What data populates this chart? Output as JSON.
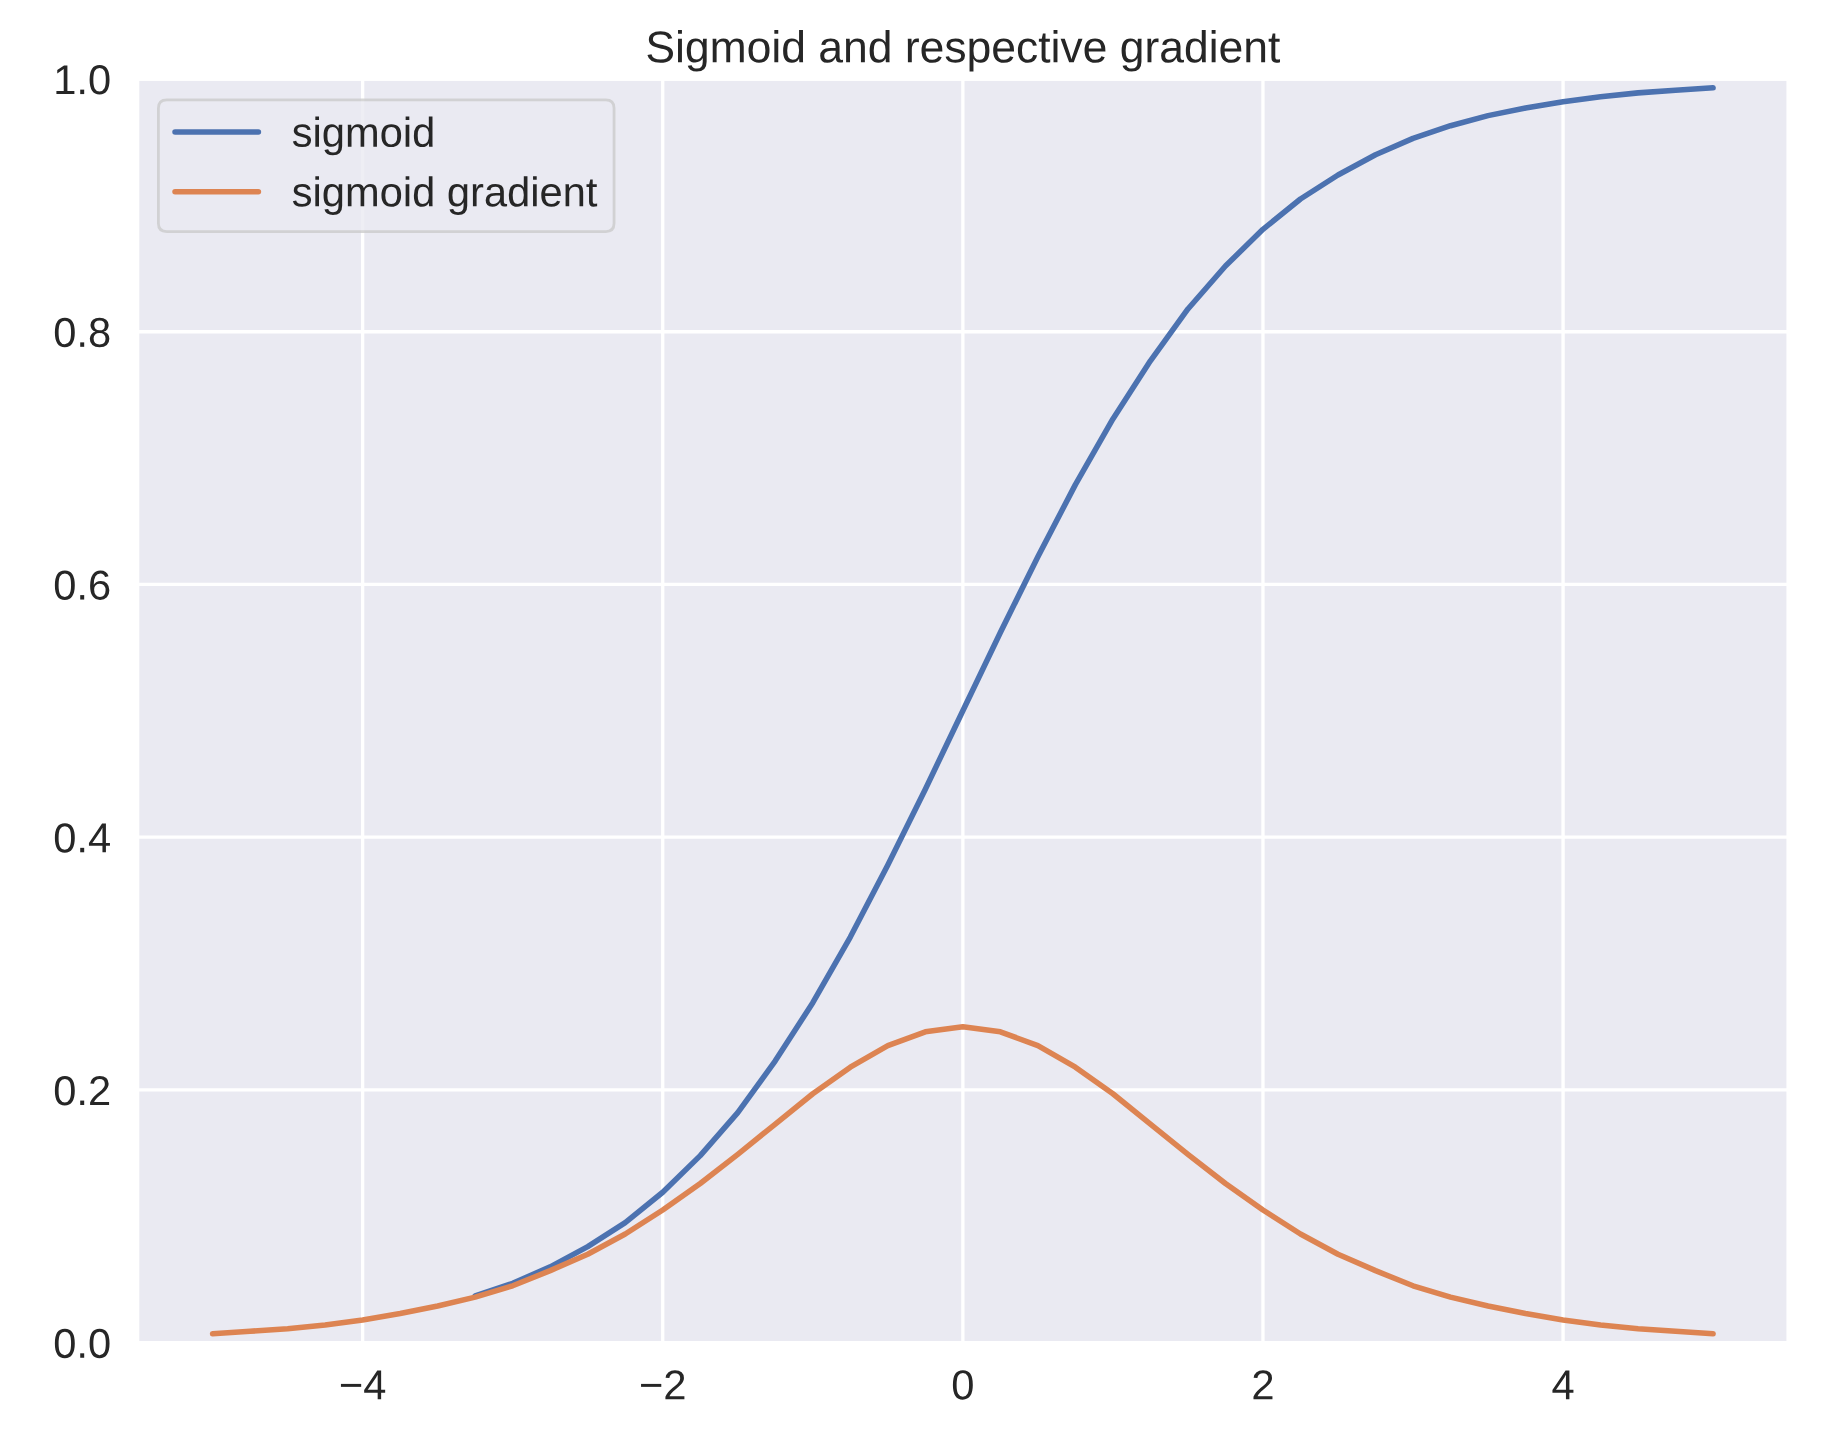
{
  "chart_data": {
    "type": "line",
    "title": "Sigmoid and respective gradient",
    "x": [
      -5,
      -4.75,
      -4.5,
      -4.25,
      -4,
      -3.75,
      -3.5,
      -3.25,
      -3,
      -2.75,
      -2.5,
      -2.25,
      -2,
      -1.75,
      -1.5,
      -1.25,
      -1,
      -0.75,
      -0.5,
      -0.25,
      0,
      0.25,
      0.5,
      0.75,
      1,
      1.25,
      1.5,
      1.75,
      2,
      2.25,
      2.5,
      2.75,
      3,
      3.25,
      3.5,
      3.75,
      4,
      4.25,
      4.5,
      4.75,
      5
    ],
    "series": [
      {
        "name": "sigmoid",
        "color": "#4c72b0",
        "values": [
          null,
          null,
          null,
          null,
          null,
          null,
          null,
          0.037,
          0.047,
          0.06,
          0.076,
          0.095,
          0.119,
          0.148,
          0.182,
          0.223,
          0.269,
          0.321,
          0.378,
          0.438,
          0.5,
          0.562,
          0.622,
          0.679,
          0.731,
          0.777,
          0.818,
          0.852,
          0.881,
          0.905,
          0.924,
          0.94,
          0.953,
          0.963,
          0.971,
          0.977,
          0.982,
          0.986,
          0.989,
          0.991,
          0.993
        ]
      },
      {
        "name": "sigmoid gradient",
        "color": "#dd8452",
        "values": [
          0.007,
          0.009,
          0.011,
          0.014,
          0.018,
          0.023,
          0.029,
          0.036,
          0.045,
          0.057,
          0.07,
          0.086,
          0.105,
          0.126,
          0.149,
          0.173,
          0.197,
          0.218,
          0.235,
          0.246,
          0.25,
          0.246,
          0.235,
          0.218,
          0.197,
          0.173,
          0.149,
          0.126,
          0.105,
          0.086,
          0.07,
          0.057,
          0.045,
          0.036,
          0.029,
          0.023,
          0.018,
          0.014,
          0.011,
          0.009,
          0.007
        ]
      }
    ],
    "xlim": [
      -5.5,
      5.5
    ],
    "ylim": [
      0,
      1
    ],
    "xticks": [
      {
        "value": -4,
        "label": "−4"
      },
      {
        "value": -2,
        "label": "−2"
      },
      0,
      2,
      4
    ],
    "yticks": [
      {
        "value": 0,
        "label": "0.0"
      },
      {
        "value": 0.2,
        "label": "0.2"
      },
      {
        "value": 0.4,
        "label": "0.4"
      },
      {
        "value": 0.6,
        "label": "0.6"
      },
      {
        "value": 0.8,
        "label": "0.8"
      },
      {
        "value": 1,
        "label": "1.0"
      }
    ],
    "grid": true,
    "legend": "top left",
    "marker": "none",
    "line_style": "solid"
  }
}
